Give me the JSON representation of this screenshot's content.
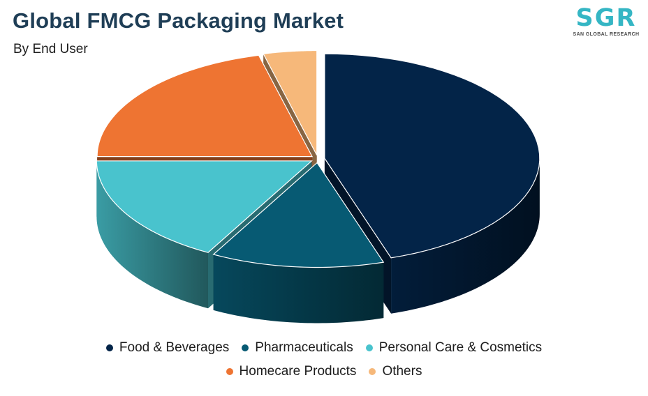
{
  "chart_data": {
    "type": "pie",
    "title": "Global FMCG Packaging Market",
    "subtitle": "By End User",
    "categories": [
      "Food & Beverages",
      "Pharmaceuticals",
      "Personal Care & Cosmetics",
      "Homecare Products",
      "Others"
    ],
    "values": [
      45,
      13,
      17,
      21,
      4
    ],
    "colors": [
      "#032448",
      "#075a73",
      "#49c3cd",
      "#ee7432",
      "#f6b87a"
    ],
    "legend_position": "bottom",
    "style": "3d-exploded"
  },
  "logo": {
    "mark": "SGR",
    "text": "SAN GLOBAL RESEARCH"
  }
}
